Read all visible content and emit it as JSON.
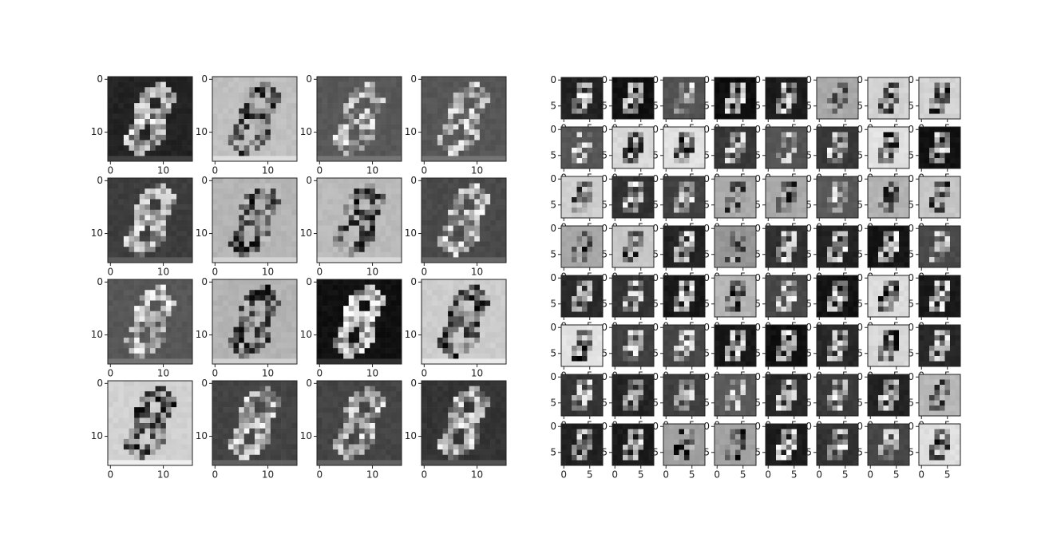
{
  "chart_data": [
    {
      "type": "image",
      "xlim": [
        -0.5,
        15.5
      ],
      "ylim": [
        15.5,
        -0.5
      ],
      "xticks": [
        0,
        10
      ],
      "yticks": [
        0,
        10
      ]
    },
    {
      "type": "image",
      "xlim": [
        -0.5,
        7.5
      ],
      "ylim": [
        7.5,
        -0.5
      ],
      "xticks": [
        0,
        5
      ],
      "yticks": [
        0,
        5
      ]
    }
  ]
}
